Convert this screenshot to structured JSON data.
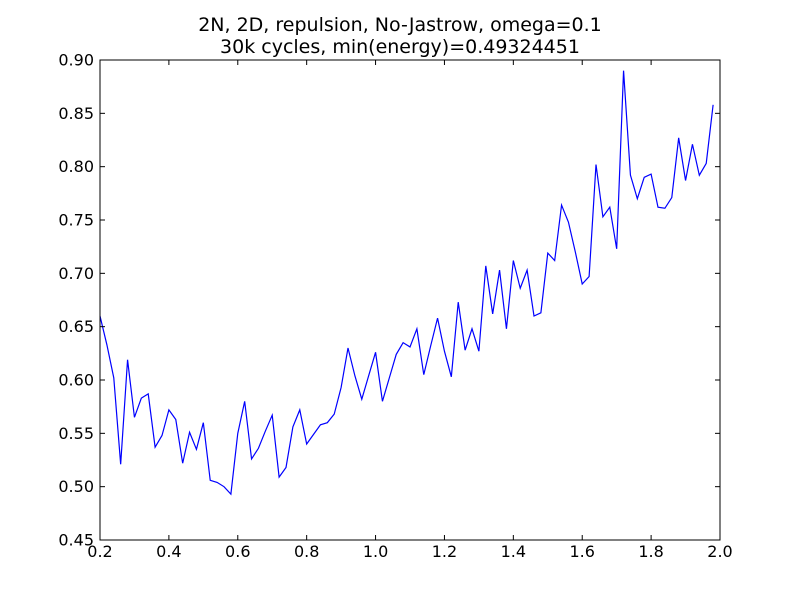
{
  "chart_data": {
    "type": "line",
    "title_lines": [
      "2N, 2D, repulsion, No-Jastrow, omega=0.1",
      "30k cycles, min(energy)=0.49324451"
    ],
    "xlabel": "",
    "ylabel": "",
    "xlim": [
      0.2,
      2.0
    ],
    "ylim": [
      0.45,
      0.9
    ],
    "x_ticks": [
      "0.2",
      "0.4",
      "0.6",
      "0.8",
      "1.0",
      "1.2",
      "1.4",
      "1.6",
      "1.8",
      "2.0"
    ],
    "y_ticks": [
      "0.45",
      "0.50",
      "0.55",
      "0.60",
      "0.65",
      "0.70",
      "0.75",
      "0.80",
      "0.85",
      "0.90"
    ],
    "grid": false,
    "series": [
      {
        "color": "#0000ff",
        "x": [
          0.2,
          0.22,
          0.24,
          0.26,
          0.28,
          0.3,
          0.32,
          0.34,
          0.36,
          0.38,
          0.4,
          0.42,
          0.44,
          0.46,
          0.48,
          0.5,
          0.52,
          0.54,
          0.56,
          0.58,
          0.6,
          0.62,
          0.64,
          0.66,
          0.68,
          0.7,
          0.72,
          0.74,
          0.76,
          0.78,
          0.8,
          0.82,
          0.84,
          0.86,
          0.88,
          0.9,
          0.92,
          0.94,
          0.96,
          0.98,
          1.0,
          1.02,
          1.04,
          1.06,
          1.08,
          1.1,
          1.12,
          1.14,
          1.16,
          1.18,
          1.2,
          1.22,
          1.24,
          1.26,
          1.28,
          1.3,
          1.32,
          1.34,
          1.36,
          1.38,
          1.4,
          1.42,
          1.44,
          1.46,
          1.48,
          1.5,
          1.52,
          1.54,
          1.56,
          1.58,
          1.6,
          1.62,
          1.64,
          1.66,
          1.68,
          1.7,
          1.72,
          1.74,
          1.76,
          1.78,
          1.8,
          1.82,
          1.84,
          1.86,
          1.88,
          1.9,
          1.92,
          1.94,
          1.96,
          1.98
        ],
        "y": [
          0.66,
          0.633,
          0.602,
          0.521,
          0.619,
          0.565,
          0.583,
          0.587,
          0.537,
          0.548,
          0.572,
          0.563,
          0.522,
          0.551,
          0.535,
          0.56,
          0.506,
          0.504,
          0.5,
          0.493,
          0.55,
          0.58,
          0.526,
          0.536,
          0.552,
          0.567,
          0.509,
          0.518,
          0.556,
          0.572,
          0.54,
          0.549,
          0.558,
          0.56,
          0.568,
          0.593,
          0.63,
          0.604,
          0.582,
          0.604,
          0.626,
          0.58,
          0.602,
          0.624,
          0.635,
          0.631,
          0.648,
          0.605,
          0.632,
          0.658,
          0.627,
          0.603,
          0.673,
          0.628,
          0.648,
          0.627,
          0.707,
          0.662,
          0.703,
          0.648,
          0.712,
          0.686,
          0.703,
          0.66,
          0.663,
          0.719,
          0.712,
          0.764,
          0.748,
          0.72,
          0.69,
          0.697,
          0.802,
          0.753,
          0.762,
          0.723,
          0.89,
          0.792,
          0.77,
          0.79,
          0.793,
          0.762,
          0.761,
          0.771,
          0.827,
          0.787,
          0.821,
          0.792,
          0.803,
          0.858
        ]
      }
    ]
  }
}
